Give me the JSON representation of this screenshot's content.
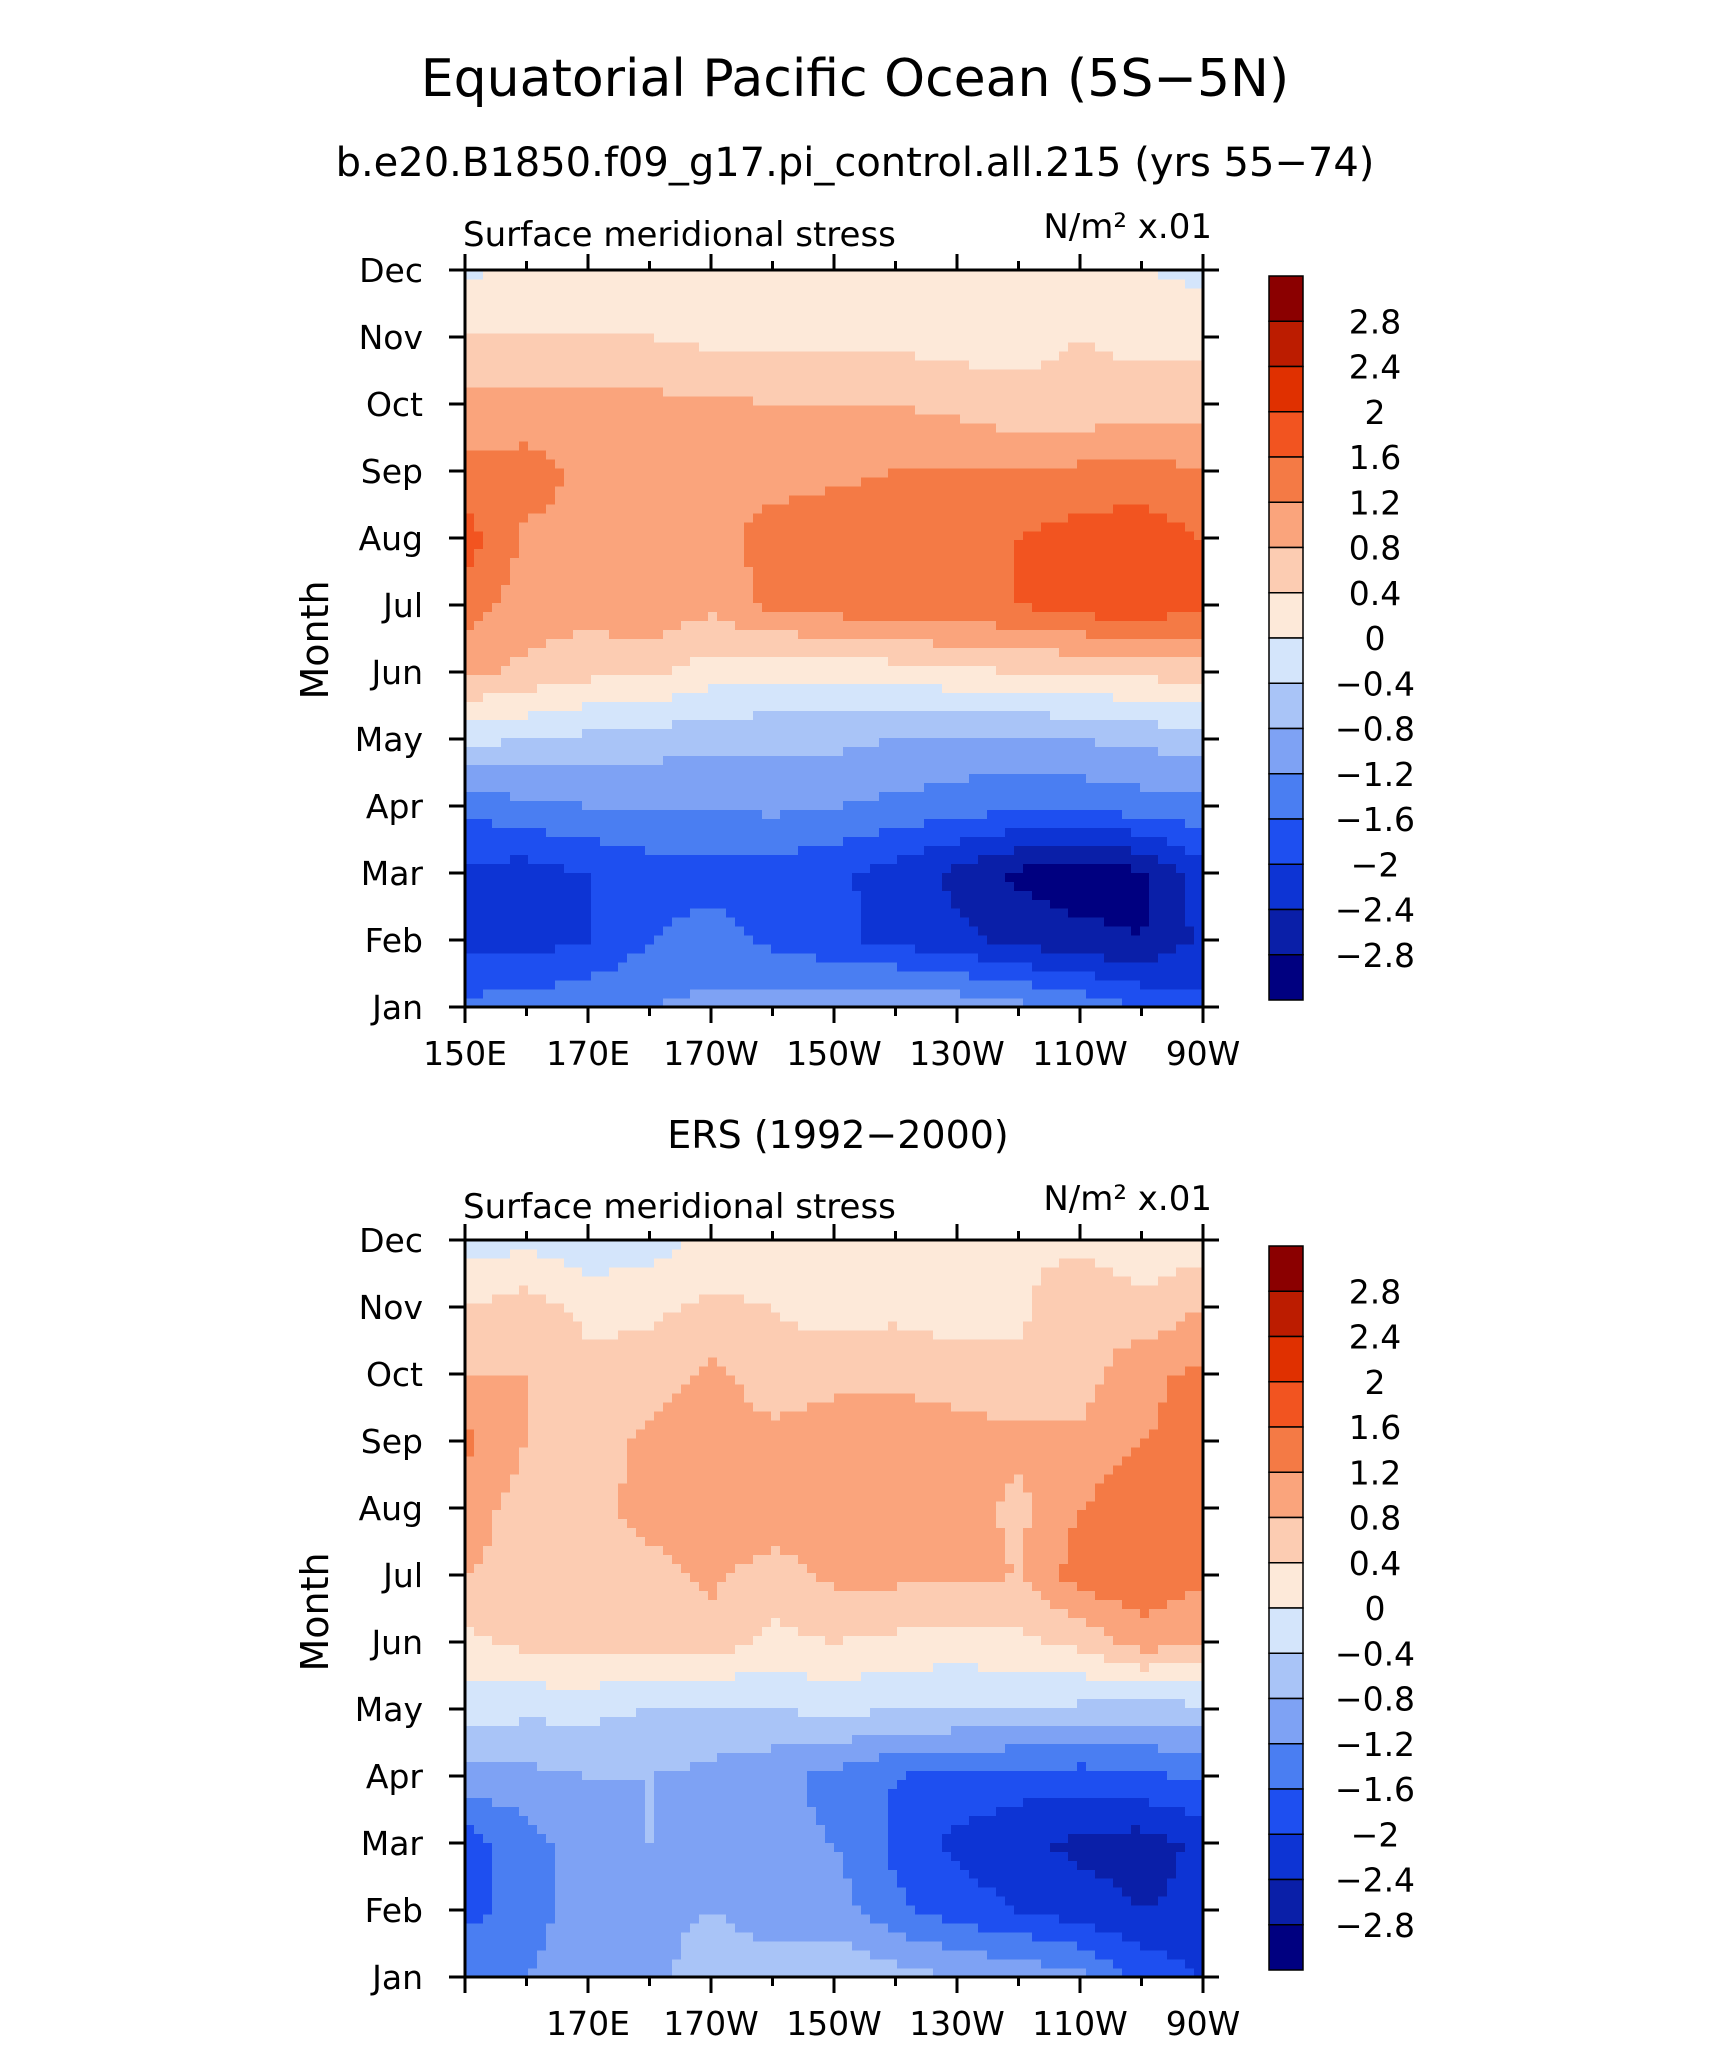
{
  "figure": {
    "title": "Equatorial Pacific Ocean (5S−5N)",
    "subtitle": "b.e20.B1850.f09_g17.pi_control.all.215 (yrs 55−74)"
  },
  "chart_data": [
    {
      "type": "heatmap",
      "panel_title": "",
      "left_label": "Surface meridional stress",
      "units_label": "N/m² x.01",
      "xlabel": "",
      "ylabel": "Month",
      "x_tick_labels": [
        "150E",
        "170E",
        "170W",
        "150W",
        "130W",
        "110W",
        "90W"
      ],
      "x_tick_values": [
        150,
        170,
        190,
        210,
        230,
        250,
        270
      ],
      "xlim": [
        150,
        270
      ],
      "y_tick_labels": [
        "Jan",
        "Feb",
        "Mar",
        "Apr",
        "May",
        "Jun",
        "Jul",
        "Aug",
        "Sep",
        "Oct",
        "Nov",
        "Dec"
      ],
      "ylim": [
        1,
        12
      ],
      "x": [
        150,
        160,
        170,
        180,
        190,
        200,
        210,
        220,
        230,
        240,
        250,
        260,
        270
      ],
      "z": [
        [
          -1.5,
          -1.4,
          -1.3,
          -1.2,
          -1.1,
          -1.0,
          -0.9,
          -0.8,
          -0.9,
          -1.1,
          -1.3,
          -1.6,
          -1.9
        ],
        [
          -2.1,
          -2.2,
          -2.0,
          -1.6,
          -1.4,
          -1.7,
          -1.9,
          -2.1,
          -2.3,
          -2.5,
          -2.7,
          -2.8,
          -2.3
        ],
        [
          -2.1,
          -2.2,
          -2.0,
          -1.8,
          -1.8,
          -1.8,
          -1.9,
          -2.2,
          -2.5,
          -2.9,
          -3.0,
          -2.9,
          -2.2
        ],
        [
          -1.5,
          -1.3,
          -1.2,
          -1.2,
          -1.2,
          -1.1,
          -1.2,
          -1.3,
          -1.4,
          -1.5,
          -1.5,
          -1.4,
          -1.3
        ],
        [
          -0.3,
          -0.4,
          -0.5,
          -0.6,
          -0.7,
          -0.7,
          -0.7,
          -0.8,
          -0.9,
          -0.9,
          -0.8,
          -0.7,
          -0.6
        ],
        [
          0.9,
          0.7,
          0.5,
          0.5,
          0.2,
          0.1,
          0.1,
          0.2,
          0.3,
          0.4,
          0.4,
          0.5,
          0.6
        ],
        [
          1.4,
          1.0,
          1.0,
          1.1,
          0.9,
          1.3,
          1.4,
          1.5,
          1.5,
          1.6,
          1.8,
          1.9,
          1.7
        ],
        [
          1.8,
          1.1,
          1.1,
          1.1,
          1.0,
          1.4,
          1.5,
          1.6,
          1.5,
          1.6,
          1.8,
          1.8,
          1.6
        ],
        [
          1.3,
          1.4,
          1.1,
          1.0,
          1.0,
          1.0,
          1.1,
          1.2,
          1.2,
          1.2,
          1.3,
          1.4,
          1.2
        ],
        [
          0.9,
          0.9,
          0.9,
          0.9,
          0.9,
          0.8,
          0.8,
          0.8,
          0.7,
          0.5,
          0.5,
          0.6,
          0.6
        ],
        [
          0.4,
          0.4,
          0.4,
          0.4,
          0.3,
          0.3,
          0.3,
          0.3,
          0.2,
          0.3,
          0.4,
          0.3,
          0.3
        ],
        [
          -0.1,
          0.1,
          0.1,
          0.1,
          0.1,
          0.1,
          0.2,
          0.1,
          0.1,
          0.1,
          0.1,
          0.0,
          -0.1
        ]
      ],
      "colorbar": {
        "levels": [
          -2.8,
          -2.4,
          -2,
          -1.6,
          -1.2,
          -0.8,
          -0.4,
          0,
          0.4,
          0.8,
          1.2,
          1.6,
          2,
          2.4,
          2.8
        ],
        "colors": [
          "#000080",
          "#0a1fa8",
          "#0d34d4",
          "#1e4ff0",
          "#4a7ef2",
          "#7ea2f4",
          "#a9c4f7",
          "#d4e5fb",
          "#fde9d9",
          "#fcccb2",
          "#faa47c",
          "#f47a45",
          "#f25420",
          "#e03000",
          "#bc1c00",
          "#8b0000"
        ],
        "labels": [
          "2.8",
          "2.4",
          "2",
          "1.6",
          "1.2",
          "0.8",
          "0.4",
          "0",
          "−0.4",
          "−0.8",
          "−1.2",
          "−1.6",
          "−2",
          "−2.4",
          "−2.8"
        ]
      }
    },
    {
      "type": "heatmap",
      "panel_title": "ERS (1992−2000)",
      "left_label": "Surface meridional stress",
      "units_label": "N/m² x.01",
      "xlabel": "",
      "ylabel": "Month",
      "x_tick_labels": [
        "170E",
        "170W",
        "150W",
        "130W",
        "110W",
        "90W"
      ],
      "x_tick_values": [
        170,
        190,
        210,
        230,
        250,
        270
      ],
      "xlim": [
        150,
        270
      ],
      "y_tick_labels": [
        "Jan",
        "Feb",
        "Mar",
        "Apr",
        "May",
        "Jun",
        "Jul",
        "Aug",
        "Sep",
        "Oct",
        "Nov",
        "Dec"
      ],
      "ylim": [
        1,
        12
      ],
      "x": [
        150,
        160,
        170,
        180,
        190,
        200,
        210,
        220,
        230,
        240,
        250,
        260,
        270
      ],
      "z": [
        [
          -1.3,
          -1.2,
          -0.9,
          -1.0,
          -0.5,
          -0.6,
          -0.5,
          -0.6,
          -0.8,
          -0.9,
          -1.1,
          -1.7,
          -2.0
        ],
        [
          -1.7,
          -1.5,
          -0.8,
          -0.9,
          -0.8,
          -1.0,
          -1.0,
          -1.5,
          -1.8,
          -2.0,
          -2.2,
          -2.4,
          -2.3
        ],
        [
          -1.8,
          -1.4,
          -0.9,
          -0.8,
          -0.8,
          -1.1,
          -1.2,
          -1.7,
          -2.1,
          -2.3,
          -2.5,
          -2.6,
          -2.3
        ],
        [
          -1.0,
          -0.9,
          -0.8,
          -0.8,
          -0.9,
          -1.1,
          -1.3,
          -1.6,
          -1.7,
          -1.8,
          -1.8,
          -1.7,
          -1.5
        ],
        [
          -0.2,
          -0.3,
          -0.3,
          -0.4,
          -0.5,
          -0.4,
          -0.3,
          -0.4,
          -0.4,
          -0.4,
          -0.5,
          -0.6,
          -0.5
        ],
        [
          0.3,
          0.5,
          0.6,
          0.5,
          0.6,
          0.3,
          0.4,
          0.3,
          0.2,
          0.3,
          0.5,
          1.0,
          0.8
        ],
        [
          0.8,
          0.7,
          0.7,
          0.6,
          0.9,
          0.6,
          0.9,
          0.9,
          0.9,
          0.8,
          1.4,
          1.5,
          1.3
        ],
        [
          1.0,
          0.6,
          0.6,
          1.0,
          1.1,
          1.1,
          1.0,
          1.1,
          1.0,
          0.7,
          1.2,
          1.5,
          1.4
        ],
        [
          1.3,
          0.8,
          0.6,
          0.9,
          1.0,
          0.9,
          1.0,
          1.1,
          1.0,
          0.9,
          0.9,
          1.2,
          1.3
        ],
        [
          0.8,
          0.8,
          0.5,
          0.6,
          0.9,
          0.6,
          0.7,
          0.7,
          0.6,
          0.5,
          0.6,
          1.1,
          1.3
        ],
        [
          0.4,
          0.6,
          0.3,
          0.3,
          0.5,
          0.4,
          0.2,
          0.3,
          0.2,
          0.3,
          0.8,
          0.5,
          0.8
        ],
        [
          -0.2,
          -0.1,
          -0.3,
          -0.2,
          0.1,
          0.1,
          0.2,
          0.1,
          0.2,
          0.3,
          0.3,
          0.1,
          0.2
        ]
      ],
      "colorbar": {
        "levels": [
          -2.8,
          -2.4,
          -2,
          -1.6,
          -1.2,
          -0.8,
          -0.4,
          0,
          0.4,
          0.8,
          1.2,
          1.6,
          2,
          2.4,
          2.8
        ],
        "colors": [
          "#000080",
          "#0a1fa8",
          "#0d34d4",
          "#1e4ff0",
          "#4a7ef2",
          "#7ea2f4",
          "#a9c4f7",
          "#d4e5fb",
          "#fde9d9",
          "#fcccb2",
          "#faa47c",
          "#f47a45",
          "#f25420",
          "#e03000",
          "#bc1c00",
          "#8b0000"
        ],
        "labels": [
          "2.8",
          "2.4",
          "2",
          "1.6",
          "1.2",
          "0.8",
          "0.4",
          "0",
          "−0.4",
          "−0.8",
          "−1.2",
          "−1.6",
          "−2",
          "−2.4",
          "−2.8"
        ]
      }
    }
  ]
}
